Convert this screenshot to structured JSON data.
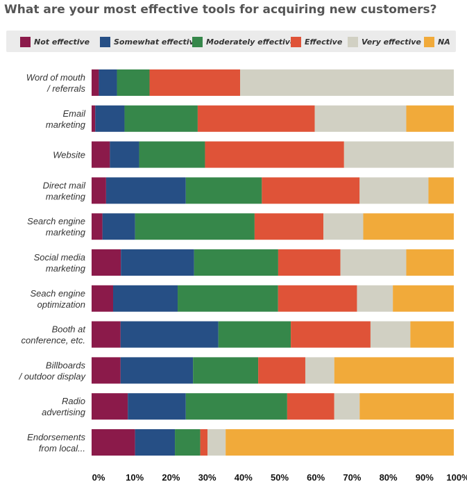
{
  "title": "What are your most effective tools for acquiring new customers?",
  "chart_data": {
    "type": "bar",
    "orientation": "horizontal",
    "stacked": true,
    "title": "What are your most effective tools for acquiring new customers?",
    "xlabel": "",
    "ylabel": "",
    "xlim": [
      0,
      100
    ],
    "legend_position": "top",
    "categories": [
      [
        "Word of mouth",
        "/ referrals"
      ],
      [
        "Email",
        "marketing"
      ],
      [
        "Website"
      ],
      [
        "Direct mail",
        "marketing"
      ],
      [
        "Search engine",
        "marketing"
      ],
      [
        "Social media",
        "marketing"
      ],
      [
        "Seach engine",
        "optimization"
      ],
      [
        "Booth at",
        "conference, etc."
      ],
      [
        "Billboards",
        "/ outdoor display"
      ],
      [
        "Radio",
        "advertising"
      ],
      [
        "Endorsements",
        "from local..."
      ]
    ],
    "series": [
      {
        "name": "Not effective",
        "color": "#8b1a4a",
        "values": [
          2,
          1,
          5,
          4,
          3,
          8,
          6,
          8,
          8,
          10,
          12
        ]
      },
      {
        "name": "Somewhat effective",
        "color": "#264f85",
        "values": [
          5,
          8,
          8,
          22,
          9,
          20,
          18,
          27,
          20,
          16,
          11
        ]
      },
      {
        "name": "Moderately effective",
        "color": "#36874a",
        "values": [
          9,
          20,
          18,
          21,
          33,
          23,
          28,
          20,
          18,
          28,
          7
        ]
      },
      {
        "name": "Effective",
        "color": "#df5338",
        "values": [
          25,
          32,
          38,
          27,
          19,
          17,
          22,
          22,
          13,
          13,
          2
        ]
      },
      {
        "name": "Very effective",
        "color": "#d1d0c3",
        "values": [
          59,
          25,
          30,
          19,
          11,
          18,
          10,
          11,
          8,
          7,
          5
        ]
      },
      {
        "name": "NA",
        "color": "#f1aa3a",
        "values": [
          0,
          13,
          0,
          7,
          25,
          13,
          17,
          12,
          33,
          26,
          63
        ]
      }
    ],
    "x_ticks": [
      "0%",
      "10%",
      "20%",
      "30%",
      "40%",
      "50%",
      "60%",
      "70%",
      "80%",
      "90%",
      "100%"
    ]
  }
}
